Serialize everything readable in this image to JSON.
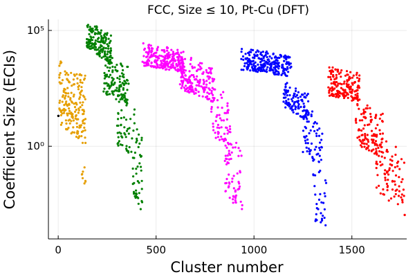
{
  "chart_data": {
    "type": "scatter",
    "title": "FCC, Size ≤ 10, Pt-Cu (DFT)",
    "xlabel": "Cluster number",
    "ylabel": "Coefficient Size (ECIs)",
    "xlim": [
      -50,
      1780
    ],
    "ylim": [
      0.0001,
      300000
    ],
    "yscale": "log",
    "grid": true,
    "legend": "none",
    "x_ticks": [
      {
        "value": 0,
        "label": "0"
      },
      {
        "value": 500,
        "label": "500"
      },
      {
        "value": 1000,
        "label": "1000"
      },
      {
        "value": 1500,
        "label": "1500"
      }
    ],
    "y_ticks": [
      {
        "value": 1,
        "label": "10⁰"
      },
      {
        "value": 100000,
        "label": "10⁵"
      }
    ],
    "series": [
      {
        "color": "#000000",
        "segments": [
          {
            "x0": 0,
            "x1": 2,
            "top0": 30,
            "top1": 30,
            "bot0": 20,
            "bot1": 20,
            "n": 2,
            "seed": 7
          }
        ]
      },
      {
        "color": "#e69f00",
        "segments": [
          {
            "x0": 3,
            "x1": 140,
            "top0": 5000,
            "top1": 2000,
            "bot0": 10,
            "bot1": 1,
            "n": 180,
            "seed": 11
          },
          {
            "x0": 120,
            "x1": 140,
            "top0": 0.3,
            "top1": 0.3,
            "bot0": 0.01,
            "bot1": 0.01,
            "n": 8,
            "seed": 13
          }
        ]
      },
      {
        "color": "#008000",
        "segments": [
          {
            "x0": 145,
            "x1": 270,
            "top0": 200000,
            "top1": 100000,
            "bot0": 20000,
            "bot1": 3000,
            "n": 170,
            "seed": 17
          },
          {
            "x0": 230,
            "x1": 360,
            "top0": 10000,
            "top1": 3000,
            "bot0": 200,
            "bot1": 50,
            "n": 120,
            "seed": 19
          },
          {
            "x0": 300,
            "x1": 390,
            "top0": 500,
            "top1": 100,
            "bot0": 1,
            "bot1": 0.3,
            "n": 50,
            "seed": 23
          },
          {
            "x0": 380,
            "x1": 430,
            "top0": 10,
            "top1": 5,
            "bot0": 0.01,
            "bot1": 0.001,
            "n": 45,
            "seed": 29
          }
        ]
      },
      {
        "color": "#ff00ff",
        "segments": [
          {
            "x0": 430,
            "x1": 640,
            "top0": 30000,
            "top1": 15000,
            "bot0": 3000,
            "bot1": 1500,
            "n": 220,
            "seed": 31
          },
          {
            "x0": 620,
            "x1": 800,
            "top0": 10000,
            "top1": 3000,
            "bot0": 300,
            "bot1": 80,
            "n": 170,
            "seed": 37
          },
          {
            "x0": 780,
            "x1": 880,
            "top0": 500,
            "top1": 150,
            "bot0": 3,
            "bot1": 1,
            "n": 60,
            "seed": 41
          },
          {
            "x0": 850,
            "x1": 940,
            "top0": 5,
            "top1": 1,
            "bot0": 0.01,
            "bot1": 0.001,
            "n": 65,
            "seed": 43
          }
        ]
      },
      {
        "color": "#0000ff",
        "segments": [
          {
            "x0": 935,
            "x1": 1190,
            "top0": 20000,
            "top1": 8000,
            "bot0": 2000,
            "bot1": 1000,
            "n": 240,
            "seed": 47
          },
          {
            "x0": 1150,
            "x1": 1280,
            "top0": 800,
            "top1": 200,
            "bot0": 50,
            "bot1": 10,
            "n": 110,
            "seed": 53
          },
          {
            "x0": 1250,
            "x1": 1350,
            "top0": 80,
            "top1": 20,
            "bot0": 0.5,
            "bot1": 0.1,
            "n": 60,
            "seed": 59
          },
          {
            "x0": 1300,
            "x1": 1370,
            "top0": 1,
            "top1": 0.1,
            "bot0": 0.0005,
            "bot1": 0.0003,
            "n": 30,
            "seed": 61
          }
        ]
      },
      {
        "color": "#ff0000",
        "segments": [
          {
            "x0": 1380,
            "x1": 1540,
            "top0": 3000,
            "top1": 1500,
            "bot0": 150,
            "bot1": 80,
            "n": 170,
            "seed": 67
          },
          {
            "x0": 1520,
            "x1": 1660,
            "top0": 100,
            "top1": 30,
            "bot0": 1,
            "bot1": 0.3,
            "n": 120,
            "seed": 71
          },
          {
            "x0": 1620,
            "x1": 1770,
            "top0": 5,
            "top1": 1,
            "bot0": 0.01,
            "bot1": 0.001,
            "n": 85,
            "seed": 73
          }
        ]
      }
    ]
  }
}
